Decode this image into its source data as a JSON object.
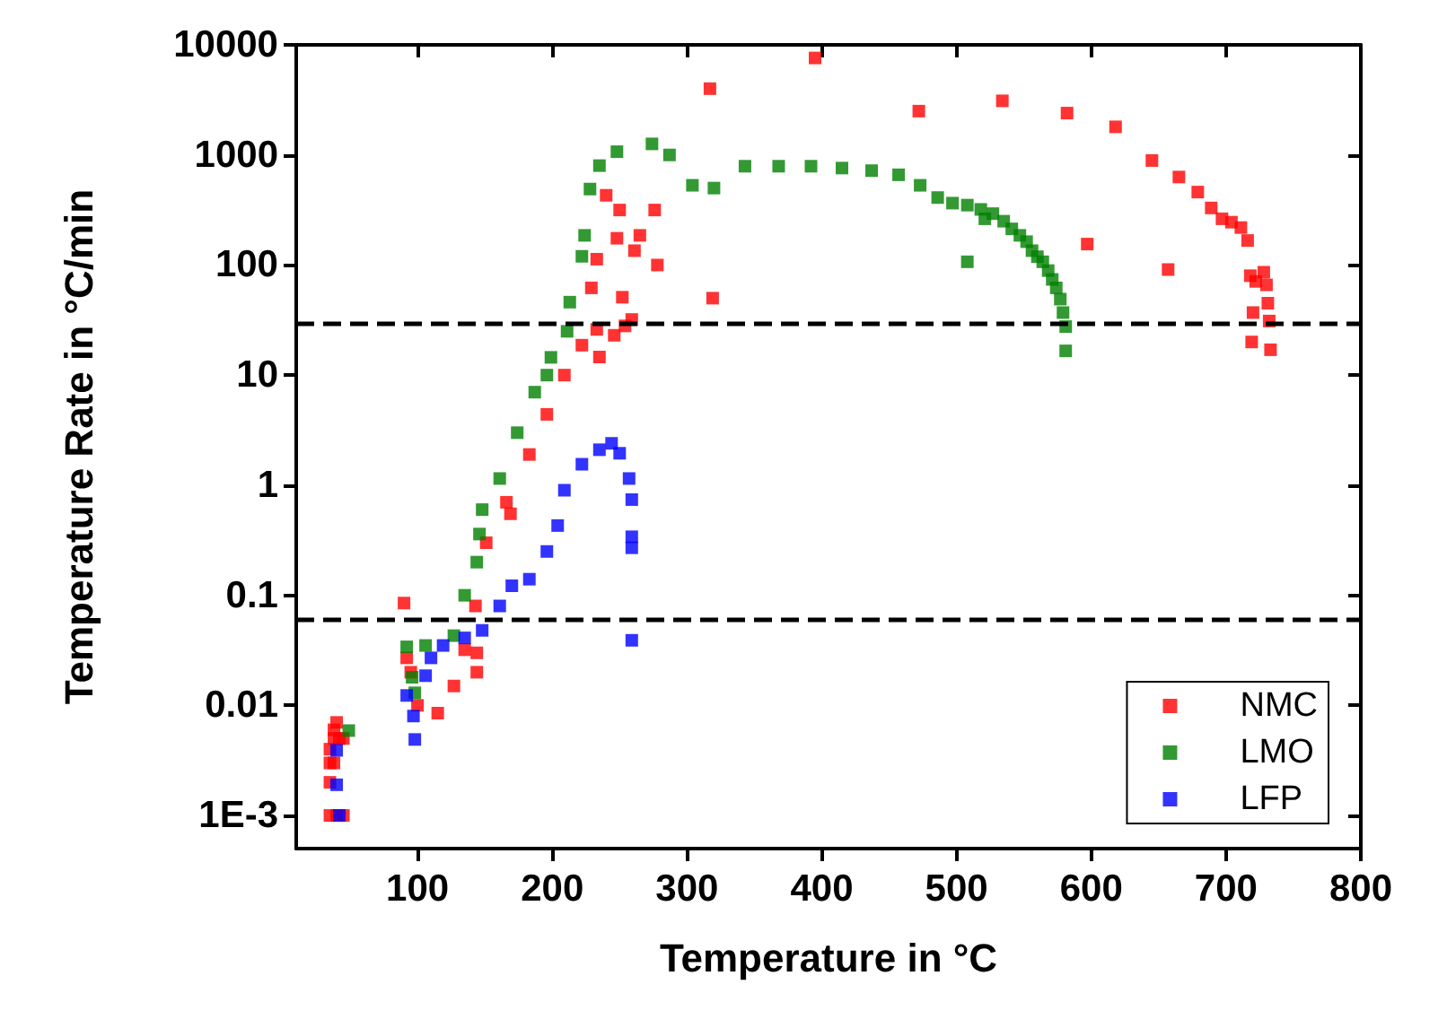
{
  "chart_data": {
    "type": "scatter",
    "xlabel": "Temperature in °C",
    "ylabel": "Temperature Rate in °C/min",
    "log": "y",
    "grid": false,
    "legend": "bottom right",
    "marker": "square",
    "xlim": [
      10,
      800
    ],
    "xticks": [
      100,
      200,
      300,
      400,
      500,
      600,
      700,
      800
    ],
    "ylim": [
      0.0005,
      10000
    ],
    "yticks": [
      {
        "value": 0.001,
        "label": "1E-3"
      },
      0.01,
      0.1,
      1,
      10,
      100,
      1000,
      10000
    ],
    "ref_lines": [
      {
        "axis": "y",
        "value": 30,
        "color": "#000000",
        "line_style": "dashed"
      },
      {
        "axis": "y",
        "value": 0.058,
        "color": "#000000",
        "line_style": "dashed"
      }
    ],
    "series": [
      {
        "name": "NMC",
        "color": "#ff0000",
        "x": [
          35,
          40,
          45,
          35,
          35,
          38,
          35,
          38,
          42,
          45,
          38,
          40,
          90,
          92,
          95,
          98,
          100,
          106,
          115,
          127,
          135,
          143,
          151,
          166,
          144,
          144,
          169,
          183,
          196,
          209,
          222,
          233,
          235,
          233,
          229,
          240,
          250,
          248,
          252,
          254,
          259,
          261,
          265,
          276,
          278,
          246,
          317,
          319,
          395,
          472,
          534,
          582,
          618,
          645,
          665,
          679,
          689,
          697,
          704,
          711,
          716,
          597,
          657,
          718,
          728,
          722,
          730,
          731,
          720,
          732,
          719,
          733
        ],
        "values": [
          0.001,
          0.001,
          0.001,
          0.002,
          0.003,
          0.003,
          0.004,
          0.005,
          0.005,
          0.005,
          0.006,
          0.007,
          0.085,
          0.027,
          0.02,
          null,
          0.01,
          null,
          0.0085,
          0.015,
          0.032,
          0.08,
          0.3,
          0.7,
          0.03,
          0.02,
          0.55,
          1.9,
          4.4,
          10,
          18.7,
          26,
          14.6,
          113,
          62,
          430,
          316,
          175,
          51,
          28,
          32,
          135,
          186,
          316,
          100,
          23,
          4000,
          50,
          7600,
          2500,
          3100,
          2400,
          1800,
          890,
          630,
          460,
          330,
          263,
          245,
          219,
          167,
          155,
          91,
          80,
          86,
          71,
          66,
          45,
          37,
          31,
          20,
          17
        ]
      },
      {
        "name": "LMO",
        "color": "#008000",
        "x": [
          49,
          92,
          96,
          98,
          106,
          127,
          135,
          144,
          146,
          148,
          161,
          174,
          187,
          196,
          199,
          211,
          213,
          222,
          224,
          228,
          235,
          248,
          274,
          287,
          304,
          320,
          343,
          368,
          392,
          415,
          437,
          457,
          473,
          486,
          497,
          508,
          518,
          521,
          527,
          535,
          541,
          547,
          552,
          556,
          560,
          564,
          568,
          571,
          574,
          577,
          579,
          581,
          581,
          508
        ],
        "values": [
          0.0059,
          0.034,
          0.018,
          0.013,
          0.035,
          0.043,
          0.1,
          0.2,
          0.36,
          0.6,
          1.15,
          3,
          7,
          10,
          14.5,
          25,
          46,
          120,
          186,
          490,
          800,
          1070,
          1260,
          1000,
          530,
          500,
          790,
          790,
          790,
          760,
          720,
          660,
          530,
          410,
          365,
          350,
          320,
          263,
          293,
          250,
          213,
          186,
          163,
          135,
          119,
          107,
          89,
          74,
          62,
          49,
          37,
          27.6,
          16.6,
          107
        ]
      },
      {
        "name": "LFP",
        "color": "#0000ff",
        "x": [
          40,
          40,
          42,
          92,
          97,
          98,
          106,
          110,
          119,
          135,
          148,
          161,
          170,
          183,
          196,
          204,
          209,
          222,
          235,
          244,
          250,
          257,
          259,
          259,
          259,
          259
        ],
        "values": [
          0.0039,
          0.0019,
          0.001,
          0.0123,
          0.008,
          0.0049,
          0.0186,
          0.027,
          0.035,
          0.041,
          0.048,
          0.08,
          0.122,
          0.14,
          0.25,
          0.43,
          0.9,
          1.55,
          2.1,
          2.4,
          1.95,
          1.15,
          0.74,
          0.34,
          0.27,
          0.039
        ]
      }
    ]
  }
}
